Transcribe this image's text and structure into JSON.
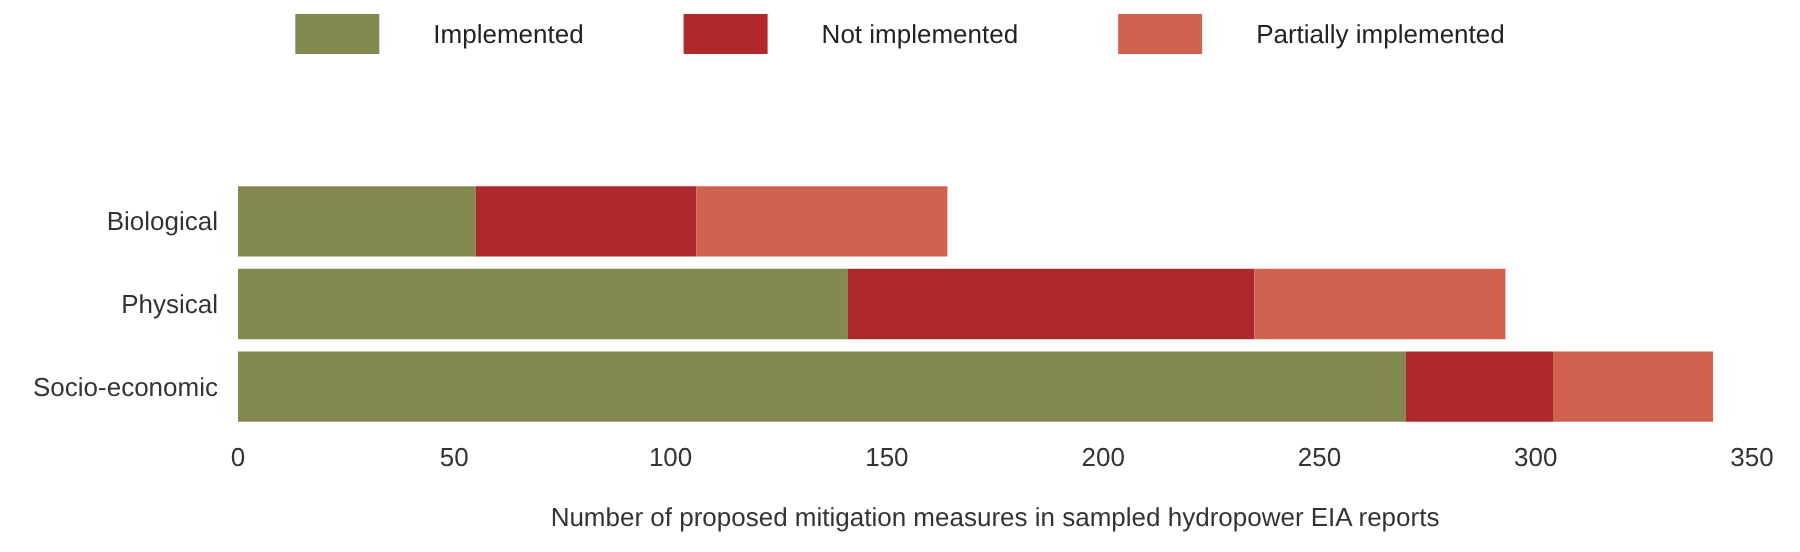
{
  "chart_data": {
    "type": "bar",
    "orientation": "horizontal",
    "stacked": true,
    "xlabel": "Number of proposed mitigation measures in sampled hydropower EIA reports",
    "categories": [
      "Biological",
      "Physical",
      "Socio-economic"
    ],
    "series": [
      {
        "name": "Implemented",
        "color": "#84894f",
        "values": [
          55,
          141,
          270
        ]
      },
      {
        "name": "Not implemented",
        "color": "#ae282c",
        "values": [
          51,
          94,
          34
        ]
      },
      {
        "name": "Partially implemented",
        "color": "#d06250",
        "values": [
          58,
          58,
          37
        ]
      }
    ],
    "xlim": [
      0,
      350
    ],
    "xticks": [
      0,
      50,
      100,
      150,
      200,
      250,
      300,
      350
    ],
    "grid": false,
    "legend": "top"
  }
}
